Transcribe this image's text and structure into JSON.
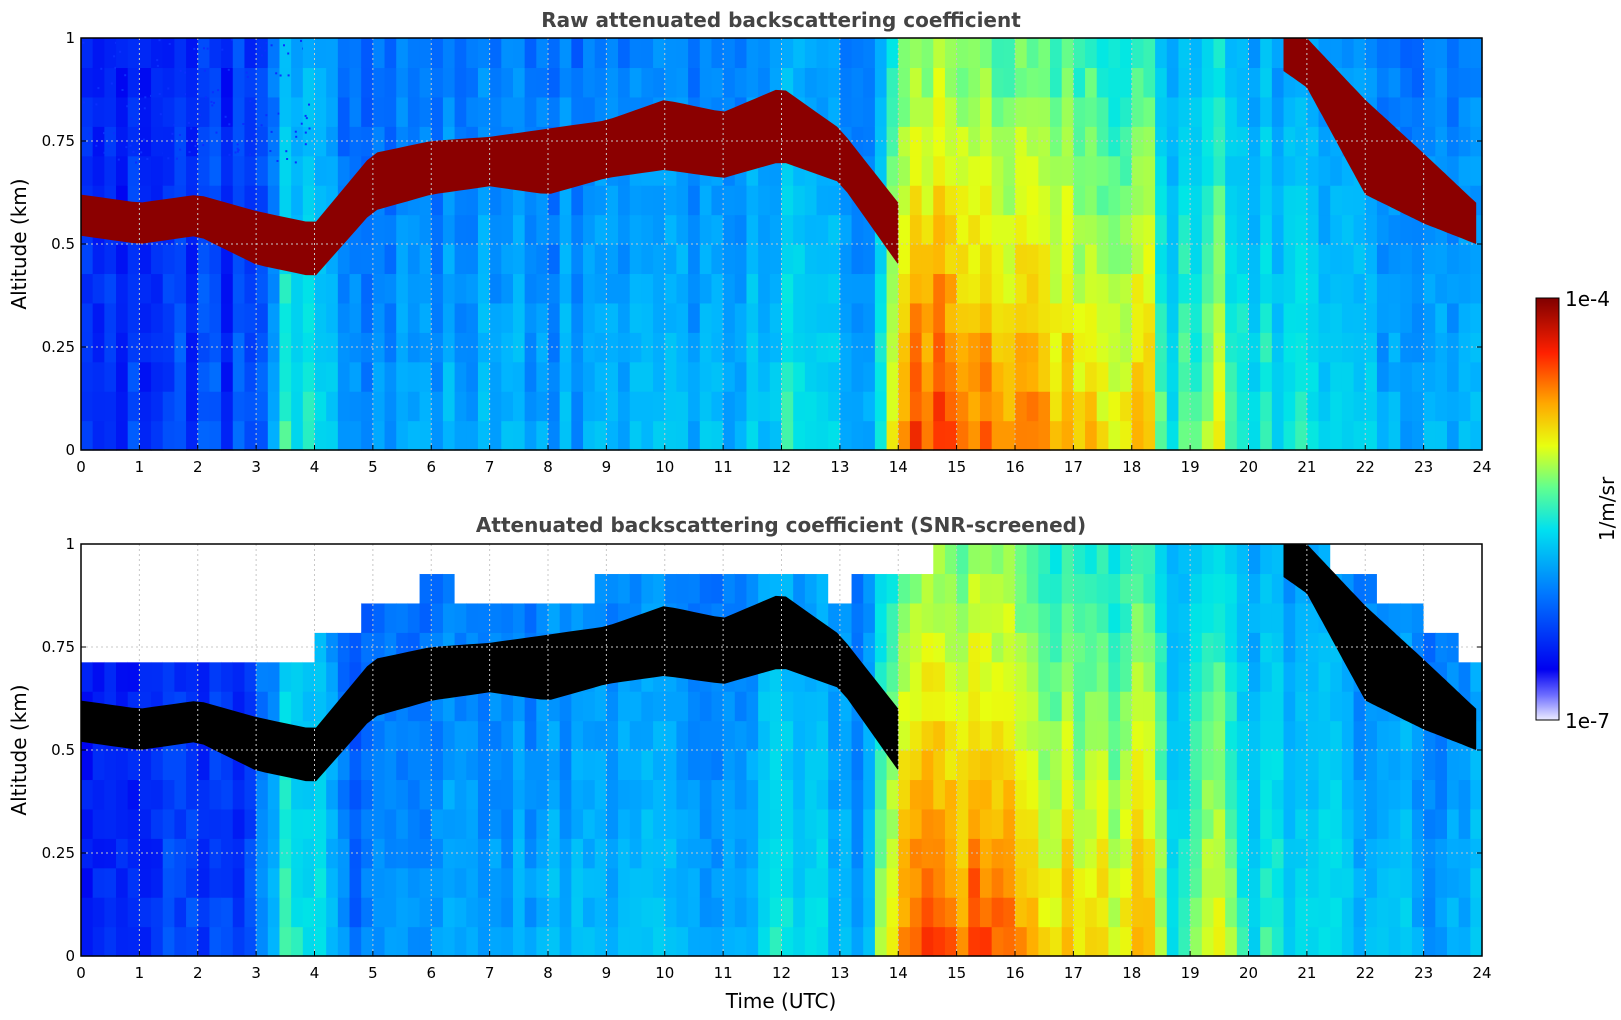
{
  "chart_data": [
    {
      "type": "heatmap",
      "title": "Raw attenuated backscattering coefficient",
      "xlabel": "",
      "ylabel": "Altitude (km)",
      "xlim": [
        0,
        24
      ],
      "ylim": [
        0,
        1
      ],
      "x_ticks": [
        "0",
        "1",
        "2",
        "3",
        "4",
        "5",
        "6",
        "7",
        "8",
        "9",
        "10",
        "11",
        "12",
        "13",
        "14",
        "15",
        "16",
        "17",
        "18",
        "19",
        "20",
        "21",
        "22",
        "23",
        "24"
      ],
      "y_ticks": [
        "0",
        "0.25",
        "0.5",
        "0.75",
        "1"
      ],
      "grid": true,
      "screened": false,
      "layer_top_km": [
        [
          0,
          0.62
        ],
        [
          1,
          0.6
        ],
        [
          2,
          0.62
        ],
        [
          3,
          0.58
        ],
        [
          4,
          0.55
        ],
        [
          5,
          0.72
        ],
        [
          6,
          0.75
        ],
        [
          7,
          0.76
        ],
        [
          8,
          0.78
        ],
        [
          9,
          0.8
        ],
        [
          10,
          0.85
        ],
        [
          11,
          0.82
        ],
        [
          12,
          0.88
        ],
        [
          13,
          0.78
        ],
        [
          14,
          0.6
        ]
      ],
      "layer_bottom_km": [
        [
          0,
          0.52
        ],
        [
          1,
          0.5
        ],
        [
          2,
          0.52
        ],
        [
          3,
          0.45
        ],
        [
          4,
          0.42
        ],
        [
          5,
          0.58
        ],
        [
          6,
          0.62
        ],
        [
          7,
          0.64
        ],
        [
          8,
          0.62
        ],
        [
          9,
          0.66
        ],
        [
          10,
          0.68
        ],
        [
          11,
          0.66
        ],
        [
          12,
          0.7
        ],
        [
          13,
          0.65
        ],
        [
          14,
          0.45
        ]
      ],
      "layer_top_late_km": [
        [
          20.6,
          1.0
        ],
        [
          21,
          1.0
        ],
        [
          22,
          0.85
        ],
        [
          23,
          0.72
        ],
        [
          23.9,
          0.6
        ]
      ],
      "layer_bottom_late_km": [
        [
          20.6,
          0.92
        ],
        [
          21,
          0.88
        ],
        [
          22,
          0.62
        ],
        [
          23,
          0.55
        ],
        [
          23.9,
          0.5
        ]
      ]
    },
    {
      "type": "heatmap",
      "title": "Attenuated backscattering coefficient (SNR-screened)",
      "xlabel": "Time (UTC)",
      "ylabel": "Altitude (km)",
      "xlim": [
        0,
        24
      ],
      "ylim": [
        0,
        1
      ],
      "x_ticks": [
        "0",
        "1",
        "2",
        "3",
        "4",
        "5",
        "6",
        "7",
        "8",
        "9",
        "10",
        "11",
        "12",
        "13",
        "14",
        "15",
        "16",
        "17",
        "18",
        "19",
        "20",
        "21",
        "22",
        "23",
        "24"
      ],
      "y_ticks": [
        "0",
        "0.25",
        "0.5",
        "0.75",
        "1"
      ],
      "grid": true,
      "screened": true,
      "signal_top_km": [
        [
          0,
          0.72
        ],
        [
          1,
          0.68
        ],
        [
          2,
          0.72
        ],
        [
          3,
          0.7
        ],
        [
          4,
          0.75
        ],
        [
          5,
          0.85
        ],
        [
          6,
          0.9
        ],
        [
          7,
          0.88
        ],
        [
          8,
          0.86
        ],
        [
          9,
          0.9
        ],
        [
          10,
          0.95
        ],
        [
          11,
          0.9
        ],
        [
          12,
          0.95
        ],
        [
          13,
          0.88
        ],
        [
          14,
          0.93
        ],
        [
          15,
          0.98
        ],
        [
          16,
          1.0
        ],
        [
          20,
          1.0
        ],
        [
          21,
          1.0
        ],
        [
          22,
          0.92
        ],
        [
          23,
          0.82
        ],
        [
          23.9,
          0.72
        ]
      ]
    }
  ],
  "colorbar": {
    "max_label": "1e-4",
    "min_label": "1e-7",
    "label": "1/m/sr",
    "scale": "log",
    "colormap": "jet"
  }
}
